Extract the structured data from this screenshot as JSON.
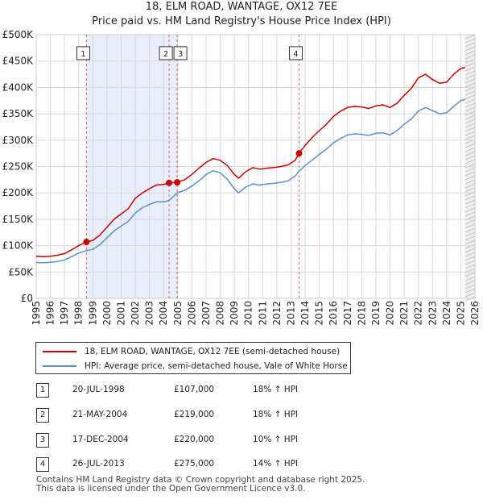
{
  "chart_data": {
    "type": "line",
    "title": "18, ELM ROAD, WANTAGE, OX12 7EE",
    "subtitle": "Price paid vs. HM Land Registry's House Price Index (HPI)",
    "xlabel": "",
    "ylabel": "",
    "xlim": [
      1995,
      2026
    ],
    "ylim": [
      0,
      500000
    ],
    "x_ticks": [
      "1995",
      "1996",
      "1997",
      "1998",
      "1999",
      "2000",
      "2001",
      "2002",
      "2003",
      "2004",
      "2005",
      "2006",
      "2007",
      "2008",
      "2009",
      "2010",
      "2011",
      "2012",
      "2013",
      "2014",
      "2015",
      "2016",
      "2017",
      "2018",
      "2019",
      "2020",
      "2021",
      "2022",
      "2023",
      "2024",
      "2025",
      "2026"
    ],
    "y_ticks": [
      {
        "value": 0,
        "label": "£0"
      },
      {
        "value": 50000,
        "label": "£50K"
      },
      {
        "value": 100000,
        "label": "£100K"
      },
      {
        "value": 150000,
        "label": "£150K"
      },
      {
        "value": 200000,
        "label": "£200K"
      },
      {
        "value": 250000,
        "label": "£250K"
      },
      {
        "value": 300000,
        "label": "£300K"
      },
      {
        "value": 350000,
        "label": "£350K"
      },
      {
        "value": 400000,
        "label": "£400K"
      },
      {
        "value": 450000,
        "label": "£450K"
      },
      {
        "value": 500000,
        "label": "£500K"
      }
    ],
    "series": [
      {
        "name": "18, ELM ROAD, WANTAGE, OX12 7EE (semi-detached house)",
        "color": "#cc0000",
        "points": [
          [
            1995.0,
            80000
          ],
          [
            1995.5,
            79000
          ],
          [
            1996.0,
            80000
          ],
          [
            1996.5,
            82000
          ],
          [
            1997.0,
            85000
          ],
          [
            1997.5,
            92000
          ],
          [
            1998.0,
            100000
          ],
          [
            1998.55,
            107000
          ],
          [
            1999.0,
            110000
          ],
          [
            1999.5,
            120000
          ],
          [
            2000.0,
            135000
          ],
          [
            2000.5,
            150000
          ],
          [
            2001.0,
            160000
          ],
          [
            2001.5,
            170000
          ],
          [
            2002.0,
            190000
          ],
          [
            2002.5,
            200000
          ],
          [
            2003.0,
            208000
          ],
          [
            2003.5,
            215000
          ],
          [
            2004.0,
            216000
          ],
          [
            2004.39,
            219000
          ],
          [
            2004.96,
            220000
          ],
          [
            2005.5,
            225000
          ],
          [
            2006.0,
            235000
          ],
          [
            2006.5,
            247000
          ],
          [
            2007.0,
            258000
          ],
          [
            2007.5,
            265000
          ],
          [
            2008.0,
            262000
          ],
          [
            2008.5,
            252000
          ],
          [
            2009.0,
            235000
          ],
          [
            2009.3,
            228000
          ],
          [
            2009.8,
            240000
          ],
          [
            2010.3,
            248000
          ],
          [
            2010.8,
            245000
          ],
          [
            2011.3,
            247000
          ],
          [
            2011.8,
            248000
          ],
          [
            2012.3,
            250000
          ],
          [
            2012.8,
            253000
          ],
          [
            2013.3,
            262000
          ],
          [
            2013.57,
            275000
          ],
          [
            2014.0,
            290000
          ],
          [
            2014.5,
            305000
          ],
          [
            2015.0,
            318000
          ],
          [
            2015.5,
            330000
          ],
          [
            2016.0,
            345000
          ],
          [
            2016.5,
            355000
          ],
          [
            2017.0,
            362000
          ],
          [
            2017.5,
            364000
          ],
          [
            2018.0,
            363000
          ],
          [
            2018.5,
            360000
          ],
          [
            2019.0,
            365000
          ],
          [
            2019.5,
            367000
          ],
          [
            2020.0,
            362000
          ],
          [
            2020.5,
            370000
          ],
          [
            2021.0,
            385000
          ],
          [
            2021.5,
            398000
          ],
          [
            2022.0,
            418000
          ],
          [
            2022.5,
            425000
          ],
          [
            2023.0,
            415000
          ],
          [
            2023.5,
            408000
          ],
          [
            2024.0,
            410000
          ],
          [
            2024.5,
            425000
          ],
          [
            2025.0,
            436000
          ],
          [
            2025.3,
            438000
          ]
        ]
      },
      {
        "name": "HPI: Average price, semi-detached house, Vale of White Horse",
        "color": "#5b8fd6",
        "points": [
          [
            1995.0,
            68000
          ],
          [
            1995.5,
            67500
          ],
          [
            1996.0,
            68500
          ],
          [
            1996.5,
            70000
          ],
          [
            1997.0,
            73000
          ],
          [
            1997.5,
            79000
          ],
          [
            1998.0,
            86000
          ],
          [
            1998.55,
            90500
          ],
          [
            1999.0,
            93000
          ],
          [
            1999.5,
            102000
          ],
          [
            2000.0,
            115000
          ],
          [
            2000.5,
            128000
          ],
          [
            2001.0,
            137000
          ],
          [
            2001.5,
            146000
          ],
          [
            2002.0,
            162000
          ],
          [
            2002.5,
            172000
          ],
          [
            2003.0,
            178000
          ],
          [
            2003.5,
            183000
          ],
          [
            2004.0,
            183000
          ],
          [
            2004.39,
            185600
          ],
          [
            2004.96,
            200000
          ],
          [
            2005.5,
            205000
          ],
          [
            2006.0,
            213000
          ],
          [
            2006.5,
            223000
          ],
          [
            2007.0,
            235000
          ],
          [
            2007.5,
            242000
          ],
          [
            2008.0,
            238000
          ],
          [
            2008.5,
            226000
          ],
          [
            2009.0,
            208000
          ],
          [
            2009.3,
            200000
          ],
          [
            2009.8,
            211000
          ],
          [
            2010.3,
            217000
          ],
          [
            2010.8,
            215000
          ],
          [
            2011.3,
            217000
          ],
          [
            2011.8,
            218000
          ],
          [
            2012.3,
            220000
          ],
          [
            2012.8,
            223000
          ],
          [
            2013.3,
            232000
          ],
          [
            2013.57,
            241000
          ],
          [
            2014.0,
            252000
          ],
          [
            2014.5,
            262000
          ],
          [
            2015.0,
            273000
          ],
          [
            2015.5,
            283000
          ],
          [
            2016.0,
            295000
          ],
          [
            2016.5,
            303000
          ],
          [
            2017.0,
            310000
          ],
          [
            2017.5,
            312000
          ],
          [
            2018.0,
            311000
          ],
          [
            2018.5,
            309000
          ],
          [
            2019.0,
            313000
          ],
          [
            2019.5,
            314000
          ],
          [
            2020.0,
            310000
          ],
          [
            2020.5,
            318000
          ],
          [
            2021.0,
            330000
          ],
          [
            2021.5,
            340000
          ],
          [
            2022.0,
            355000
          ],
          [
            2022.5,
            362000
          ],
          [
            2023.0,
            356000
          ],
          [
            2023.5,
            350000
          ],
          [
            2024.0,
            352000
          ],
          [
            2024.5,
            364000
          ],
          [
            2025.0,
            375000
          ],
          [
            2025.3,
            377000
          ]
        ]
      }
    ],
    "sales": [
      {
        "id": "1",
        "x": 1998.55,
        "y": 107000
      },
      {
        "id": "2",
        "x": 2004.39,
        "y": 219000
      },
      {
        "id": "3",
        "x": 2004.96,
        "y": 220000
      },
      {
        "id": "4",
        "x": 2013.57,
        "y": 275000
      }
    ],
    "shaded_ranges": [
      [
        1998.55,
        2004.96
      ]
    ],
    "forecast_from": 2025.3,
    "marker_box_value": 465000
  },
  "colors": {
    "property_line": "#cc0000",
    "hpi_line": "#5b8fd6",
    "shade": "#e8eefb",
    "grid": "#d8d8d8",
    "vline": "#e06060"
  },
  "legend": {
    "property": "18, ELM ROAD, WANTAGE, OX12 7EE (semi-detached house)",
    "hpi": "HPI: Average price, semi-detached house, Vale of White Horse"
  },
  "transactions": [
    {
      "num": "1",
      "date": "20-JUL-1998",
      "price": "£107,000",
      "hpi": "18% ↑ HPI"
    },
    {
      "num": "2",
      "date": "21-MAY-2004",
      "price": "£219,000",
      "hpi": "18% ↑ HPI"
    },
    {
      "num": "3",
      "date": "17-DEC-2004",
      "price": "£220,000",
      "hpi": "10% ↑ HPI"
    },
    {
      "num": "4",
      "date": "26-JUL-2013",
      "price": "£275,000",
      "hpi": "14% ↑ HPI"
    }
  ],
  "footer": {
    "line1": "Contains HM Land Registry data © Crown copyright and database right 2025.",
    "line2": "This data is licensed under the Open Government Licence v3.0."
  }
}
